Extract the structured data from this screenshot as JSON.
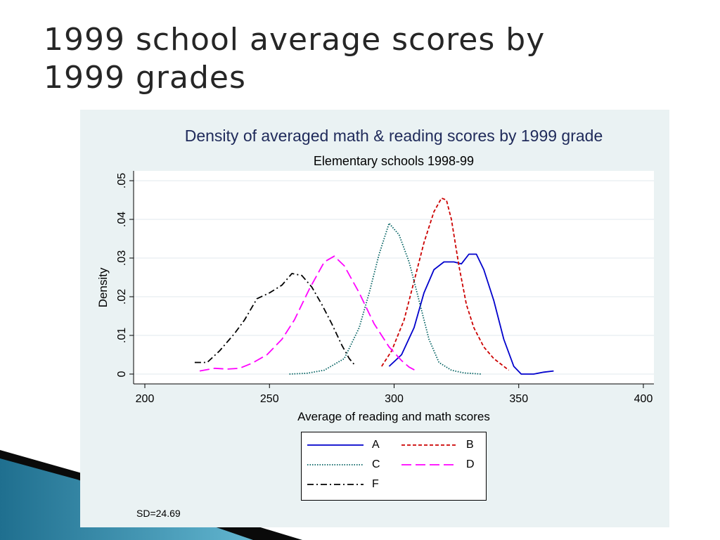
{
  "slide": {
    "title_line1": "1999 school average scores by",
    "title_line2": "1999 grades"
  },
  "chart_data": {
    "type": "line",
    "title": "Density of averaged math & reading scores by 1999 grade",
    "subtitle": "Elementary schools 1998-99",
    "xlabel": "Average of reading and math scores",
    "ylabel": "Density",
    "xlim": [
      200,
      400
    ],
    "ylim": [
      0,
      0.05
    ],
    "xticks": [
      "200",
      "250",
      "300",
      "350",
      "400"
    ],
    "yticks": [
      "0",
      ".01",
      ".02",
      ".03",
      ".04",
      ".05"
    ],
    "ytick_values": [
      0,
      0.01,
      0.02,
      0.03,
      0.04,
      0.05
    ],
    "xtick_values": [
      200,
      250,
      300,
      350,
      400
    ],
    "grid": true,
    "legend_position": "bottom",
    "note": "SD=24.69",
    "series": [
      {
        "name": "A",
        "color": "#0000cc",
        "dash": "solid",
        "points": [
          [
            298,
            0.002
          ],
          [
            303,
            0.005
          ],
          [
            308,
            0.012
          ],
          [
            312,
            0.021
          ],
          [
            316,
            0.027
          ],
          [
            320,
            0.029
          ],
          [
            324,
            0.029
          ],
          [
            327,
            0.0285
          ],
          [
            330,
            0.031
          ],
          [
            333,
            0.031
          ],
          [
            336,
            0.027
          ],
          [
            340,
            0.019
          ],
          [
            344,
            0.009
          ],
          [
            348,
            0.002
          ],
          [
            351,
            0.0
          ],
          [
            356,
            0.0
          ],
          [
            360,
            0.0005
          ],
          [
            364,
            0.0008
          ]
        ]
      },
      {
        "name": "B",
        "color": "#cc0000",
        "dash": "short",
        "points": [
          [
            295,
            0.002
          ],
          [
            299,
            0.006
          ],
          [
            304,
            0.014
          ],
          [
            308,
            0.024
          ],
          [
            312,
            0.034
          ],
          [
            316,
            0.042
          ],
          [
            319,
            0.0455
          ],
          [
            321,
            0.045
          ],
          [
            323,
            0.04
          ],
          [
            326,
            0.028
          ],
          [
            329,
            0.018
          ],
          [
            332,
            0.012
          ],
          [
            336,
            0.007
          ],
          [
            340,
            0.004
          ],
          [
            344,
            0.002
          ],
          [
            346,
            0.001
          ]
        ]
      },
      {
        "name": "C",
        "color": "#006060",
        "dash": "dotted",
        "points": [
          [
            258,
            0.0
          ],
          [
            265,
            0.0002
          ],
          [
            272,
            0.001
          ],
          [
            280,
            0.004
          ],
          [
            286,
            0.012
          ],
          [
            290,
            0.021
          ],
          [
            294,
            0.031
          ],
          [
            298,
            0.039
          ],
          [
            302,
            0.036
          ],
          [
            306,
            0.029
          ],
          [
            310,
            0.019
          ],
          [
            314,
            0.009
          ],
          [
            318,
            0.003
          ],
          [
            323,
            0.001
          ],
          [
            328,
            0.0003
          ],
          [
            335,
            0.0
          ]
        ]
      },
      {
        "name": "D",
        "color": "#ff00ff",
        "dash": "long",
        "points": [
          [
            222,
            0.0008
          ],
          [
            228,
            0.0015
          ],
          [
            233,
            0.0013
          ],
          [
            238,
            0.0015
          ],
          [
            243,
            0.0028
          ],
          [
            249,
            0.005
          ],
          [
            255,
            0.009
          ],
          [
            260,
            0.014
          ],
          [
            266,
            0.022
          ],
          [
            272,
            0.029
          ],
          [
            276,
            0.0305
          ],
          [
            280,
            0.028
          ],
          [
            286,
            0.021
          ],
          [
            292,
            0.013
          ],
          [
            298,
            0.007
          ],
          [
            303,
            0.0035
          ],
          [
            306,
            0.0018
          ],
          [
            309,
            0.0008
          ]
        ]
      },
      {
        "name": "F",
        "color": "#000000",
        "dash": "dashdot",
        "points": [
          [
            220,
            0.003
          ],
          [
            225,
            0.003
          ],
          [
            230,
            0.006
          ],
          [
            236,
            0.0105
          ],
          [
            240,
            0.014
          ],
          [
            245,
            0.0195
          ],
          [
            250,
            0.021
          ],
          [
            255,
            0.023
          ],
          [
            259,
            0.026
          ],
          [
            263,
            0.0255
          ],
          [
            267,
            0.0225
          ],
          [
            271,
            0.018
          ],
          [
            275,
            0.013
          ],
          [
            279,
            0.0075
          ],
          [
            282,
            0.004
          ],
          [
            284,
            0.0025
          ]
        ]
      }
    ]
  }
}
